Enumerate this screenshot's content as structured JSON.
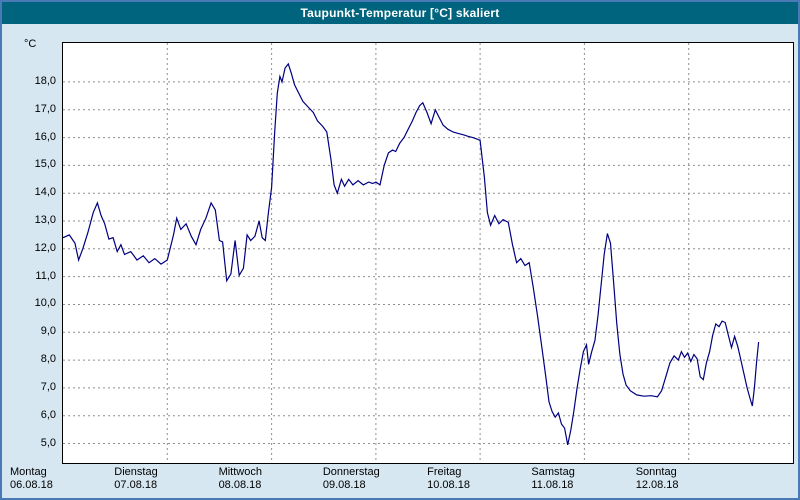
{
  "window": {
    "title": "Taupunkt-Temperatur [°C] skaliert"
  },
  "colors": {
    "title_bar": "#00647e",
    "title_text": "#ffffff",
    "page_background": "#d6e7f2",
    "page_border": "#4a7ab5",
    "plot_background": "#ffffff",
    "plot_border": "#000000",
    "grid": "#8f8f8f",
    "line": "#000080"
  },
  "chart_data": {
    "type": "line",
    "title": "Taupunkt-Temperatur [°C] skaliert",
    "ylabel": "°C",
    "ylim": [
      4.3,
      19.4
    ],
    "xlim_days": [
      0,
      7
    ],
    "grid": true,
    "legend": "none",
    "yticks": {
      "values": [
        18,
        17,
        16,
        15,
        14,
        13,
        12,
        11,
        10,
        9,
        8,
        7,
        6,
        5
      ],
      "labels": [
        "18,0",
        "17,0",
        "16,0",
        "15,0",
        "14,0",
        "13,0",
        "12,0",
        "11,0",
        "10,0",
        "9,0",
        "8,0",
        "7,0",
        "6,0",
        "5,0"
      ]
    },
    "x_day_labels": [
      {
        "day": "Montag",
        "date": "06.08.18"
      },
      {
        "day": "Dienstag",
        "date": "07.08.18"
      },
      {
        "day": "Mittwoch",
        "date": "08.08.18"
      },
      {
        "day": "Donnerstag",
        "date": "09.08.18"
      },
      {
        "day": "Freitag",
        "date": "10.08.18"
      },
      {
        "day": "Samstag",
        "date": "11.08.18"
      },
      {
        "day": "Sonntag",
        "date": "12.08.18"
      }
    ],
    "series": [
      {
        "name": "taupunkt",
        "color": "#000080",
        "points": [
          [
            0.0,
            12.4
          ],
          [
            0.06,
            12.5
          ],
          [
            0.115,
            12.2
          ],
          [
            0.15,
            11.6
          ],
          [
            0.19,
            12.0
          ],
          [
            0.24,
            12.6
          ],
          [
            0.29,
            13.3
          ],
          [
            0.33,
            13.65
          ],
          [
            0.365,
            13.2
          ],
          [
            0.4,
            12.9
          ],
          [
            0.44,
            12.35
          ],
          [
            0.48,
            12.4
          ],
          [
            0.52,
            11.9
          ],
          [
            0.555,
            12.15
          ],
          [
            0.59,
            11.8
          ],
          [
            0.65,
            11.9
          ],
          [
            0.71,
            11.6
          ],
          [
            0.77,
            11.75
          ],
          [
            0.825,
            11.5
          ],
          [
            0.88,
            11.65
          ],
          [
            0.94,
            11.45
          ],
          [
            1.0,
            11.6
          ],
          [
            1.06,
            12.5
          ],
          [
            1.09,
            13.1
          ],
          [
            1.13,
            12.7
          ],
          [
            1.18,
            12.9
          ],
          [
            1.23,
            12.45
          ],
          [
            1.275,
            12.15
          ],
          [
            1.32,
            12.7
          ],
          [
            1.37,
            13.1
          ],
          [
            1.42,
            13.65
          ],
          [
            1.46,
            13.4
          ],
          [
            1.5,
            12.3
          ],
          [
            1.53,
            12.25
          ],
          [
            1.57,
            10.85
          ],
          [
            1.61,
            11.1
          ],
          [
            1.65,
            12.3
          ],
          [
            1.69,
            11.05
          ],
          [
            1.73,
            11.3
          ],
          [
            1.765,
            12.5
          ],
          [
            1.8,
            12.3
          ],
          [
            1.84,
            12.45
          ],
          [
            1.88,
            13.0
          ],
          [
            1.91,
            12.4
          ],
          [
            1.94,
            12.3
          ],
          [
            1.97,
            13.3
          ],
          [
            2.0,
            14.2
          ],
          [
            2.03,
            16.2
          ],
          [
            2.055,
            17.6
          ],
          [
            2.08,
            18.2
          ],
          [
            2.1,
            18.0
          ],
          [
            2.13,
            18.5
          ],
          [
            2.16,
            18.65
          ],
          [
            2.19,
            18.3
          ],
          [
            2.22,
            17.9
          ],
          [
            2.26,
            17.6
          ],
          [
            2.3,
            17.3
          ],
          [
            2.35,
            17.1
          ],
          [
            2.4,
            16.9
          ],
          [
            2.44,
            16.6
          ],
          [
            2.49,
            16.4
          ],
          [
            2.53,
            16.2
          ],
          [
            2.57,
            15.2
          ],
          [
            2.6,
            14.3
          ],
          [
            2.63,
            14.0
          ],
          [
            2.67,
            14.5
          ],
          [
            2.7,
            14.25
          ],
          [
            2.74,
            14.5
          ],
          [
            2.78,
            14.3
          ],
          [
            2.83,
            14.45
          ],
          [
            2.88,
            14.3
          ],
          [
            2.93,
            14.4
          ],
          [
            2.97,
            14.35
          ],
          [
            3.0,
            14.4
          ],
          [
            3.04,
            14.3
          ],
          [
            3.08,
            15.0
          ],
          [
            3.12,
            15.45
          ],
          [
            3.16,
            15.55
          ],
          [
            3.19,
            15.5
          ],
          [
            3.23,
            15.8
          ],
          [
            3.27,
            16.0
          ],
          [
            3.31,
            16.3
          ],
          [
            3.35,
            16.6
          ],
          [
            3.385,
            16.9
          ],
          [
            3.42,
            17.15
          ],
          [
            3.45,
            17.25
          ],
          [
            3.49,
            16.9
          ],
          [
            3.53,
            16.5
          ],
          [
            3.57,
            17.0
          ],
          [
            3.61,
            16.7
          ],
          [
            3.645,
            16.45
          ],
          [
            3.69,
            16.3
          ],
          [
            3.74,
            16.2
          ],
          [
            3.79,
            16.15
          ],
          [
            3.84,
            16.1
          ],
          [
            3.88,
            16.05
          ],
          [
            3.93,
            16.0
          ],
          [
            3.97,
            15.95
          ],
          [
            4.0,
            15.9
          ],
          [
            4.04,
            14.6
          ],
          [
            4.07,
            13.3
          ],
          [
            4.1,
            12.85
          ],
          [
            4.14,
            13.2
          ],
          [
            4.18,
            12.9
          ],
          [
            4.22,
            13.05
          ],
          [
            4.27,
            12.95
          ],
          [
            4.31,
            12.15
          ],
          [
            4.35,
            11.5
          ],
          [
            4.39,
            11.65
          ],
          [
            4.43,
            11.4
          ],
          [
            4.47,
            11.5
          ],
          [
            4.51,
            10.6
          ],
          [
            4.55,
            9.6
          ],
          [
            4.59,
            8.5
          ],
          [
            4.63,
            7.4
          ],
          [
            4.66,
            6.5
          ],
          [
            4.69,
            6.15
          ],
          [
            4.72,
            5.95
          ],
          [
            4.75,
            6.1
          ],
          [
            4.78,
            5.7
          ],
          [
            4.81,
            5.55
          ],
          [
            4.84,
            4.95
          ],
          [
            4.87,
            5.5
          ],
          [
            4.9,
            6.2
          ],
          [
            4.93,
            7.0
          ],
          [
            4.96,
            7.7
          ],
          [
            4.99,
            8.3
          ],
          [
            5.02,
            8.55
          ],
          [
            5.04,
            7.85
          ],
          [
            5.07,
            8.3
          ],
          [
            5.1,
            8.7
          ],
          [
            5.13,
            9.6
          ],
          [
            5.16,
            10.7
          ],
          [
            5.19,
            11.8
          ],
          [
            5.22,
            12.55
          ],
          [
            5.25,
            12.2
          ],
          [
            5.28,
            10.8
          ],
          [
            5.31,
            9.3
          ],
          [
            5.34,
            8.2
          ],
          [
            5.37,
            7.5
          ],
          [
            5.4,
            7.1
          ],
          [
            5.44,
            6.9
          ],
          [
            5.5,
            6.75
          ],
          [
            5.57,
            6.7
          ],
          [
            5.64,
            6.72
          ],
          [
            5.7,
            6.68
          ],
          [
            5.74,
            6.9
          ],
          [
            5.78,
            7.4
          ],
          [
            5.82,
            7.9
          ],
          [
            5.86,
            8.15
          ],
          [
            5.9,
            8.0
          ],
          [
            5.93,
            8.3
          ],
          [
            5.96,
            8.1
          ],
          [
            5.99,
            8.25
          ],
          [
            6.02,
            7.95
          ],
          [
            6.05,
            8.2
          ],
          [
            6.08,
            8.05
          ],
          [
            6.11,
            7.4
          ],
          [
            6.14,
            7.3
          ],
          [
            6.17,
            7.9
          ],
          [
            6.2,
            8.3
          ],
          [
            6.23,
            8.9
          ],
          [
            6.26,
            9.3
          ],
          [
            6.29,
            9.2
          ],
          [
            6.32,
            9.4
          ],
          [
            6.35,
            9.35
          ],
          [
            6.38,
            8.9
          ],
          [
            6.41,
            8.45
          ],
          [
            6.44,
            8.85
          ],
          [
            6.47,
            8.5
          ],
          [
            6.5,
            8.0
          ],
          [
            6.53,
            7.5
          ],
          [
            6.56,
            7.0
          ],
          [
            6.59,
            6.6
          ],
          [
            6.61,
            6.35
          ],
          [
            6.63,
            7.0
          ],
          [
            6.65,
            7.9
          ],
          [
            6.67,
            8.65
          ]
        ]
      }
    ]
  }
}
